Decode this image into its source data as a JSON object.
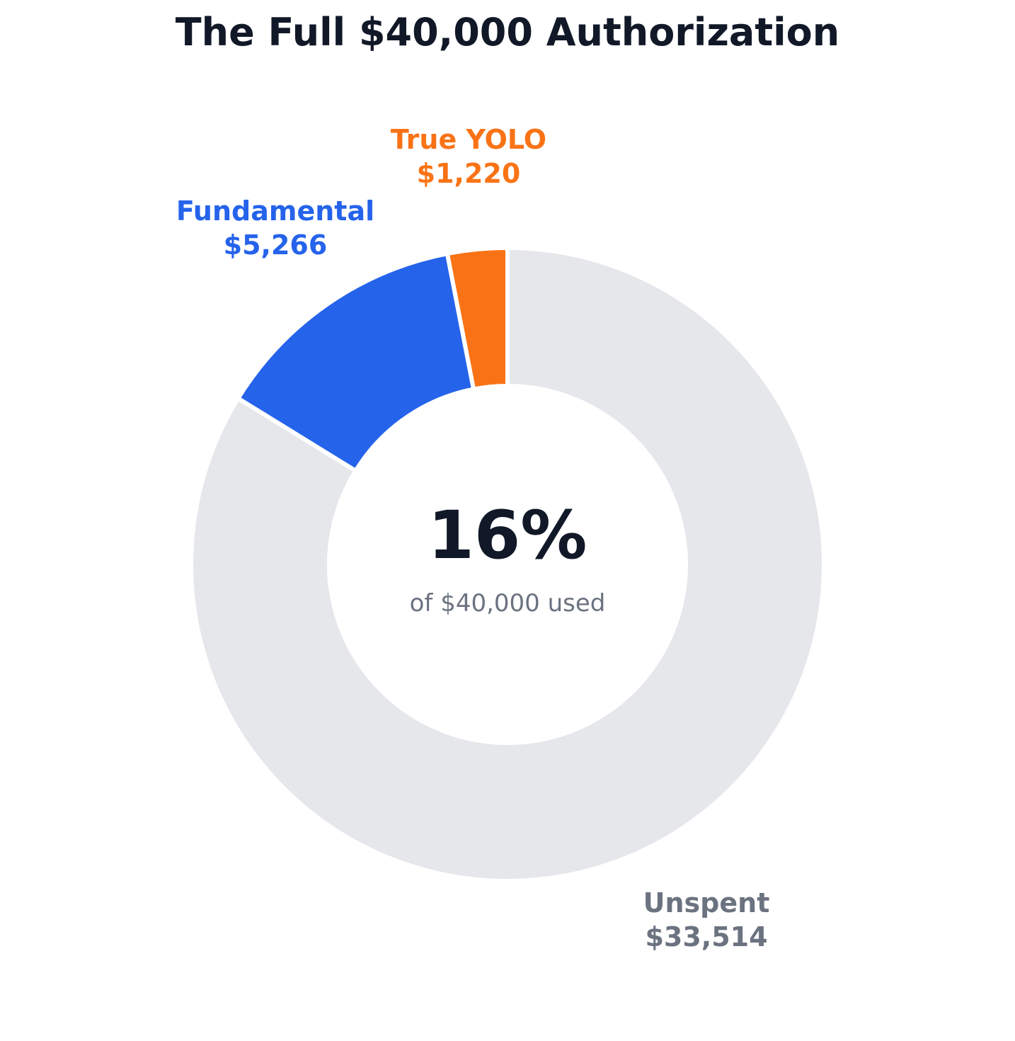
{
  "chart_data": {
    "type": "pie",
    "style": "donut",
    "title": "The Full $40,000 Authorization",
    "total": 40000,
    "slices": [
      {
        "name": "True YOLO",
        "value": 1220,
        "label": "$1,220",
        "color": "#f97316"
      },
      {
        "name": "Fundamental",
        "value": 5266,
        "label": "$5,266",
        "color": "#2563eb"
      },
      {
        "name": "Unspent",
        "value": 33514,
        "label": "$33,514",
        "color": "#e5e7eb",
        "label_color": "#6b7280"
      }
    ],
    "center": {
      "value": "16%",
      "caption": "of $40,000 used"
    },
    "direction": "counterclockwise from top"
  }
}
